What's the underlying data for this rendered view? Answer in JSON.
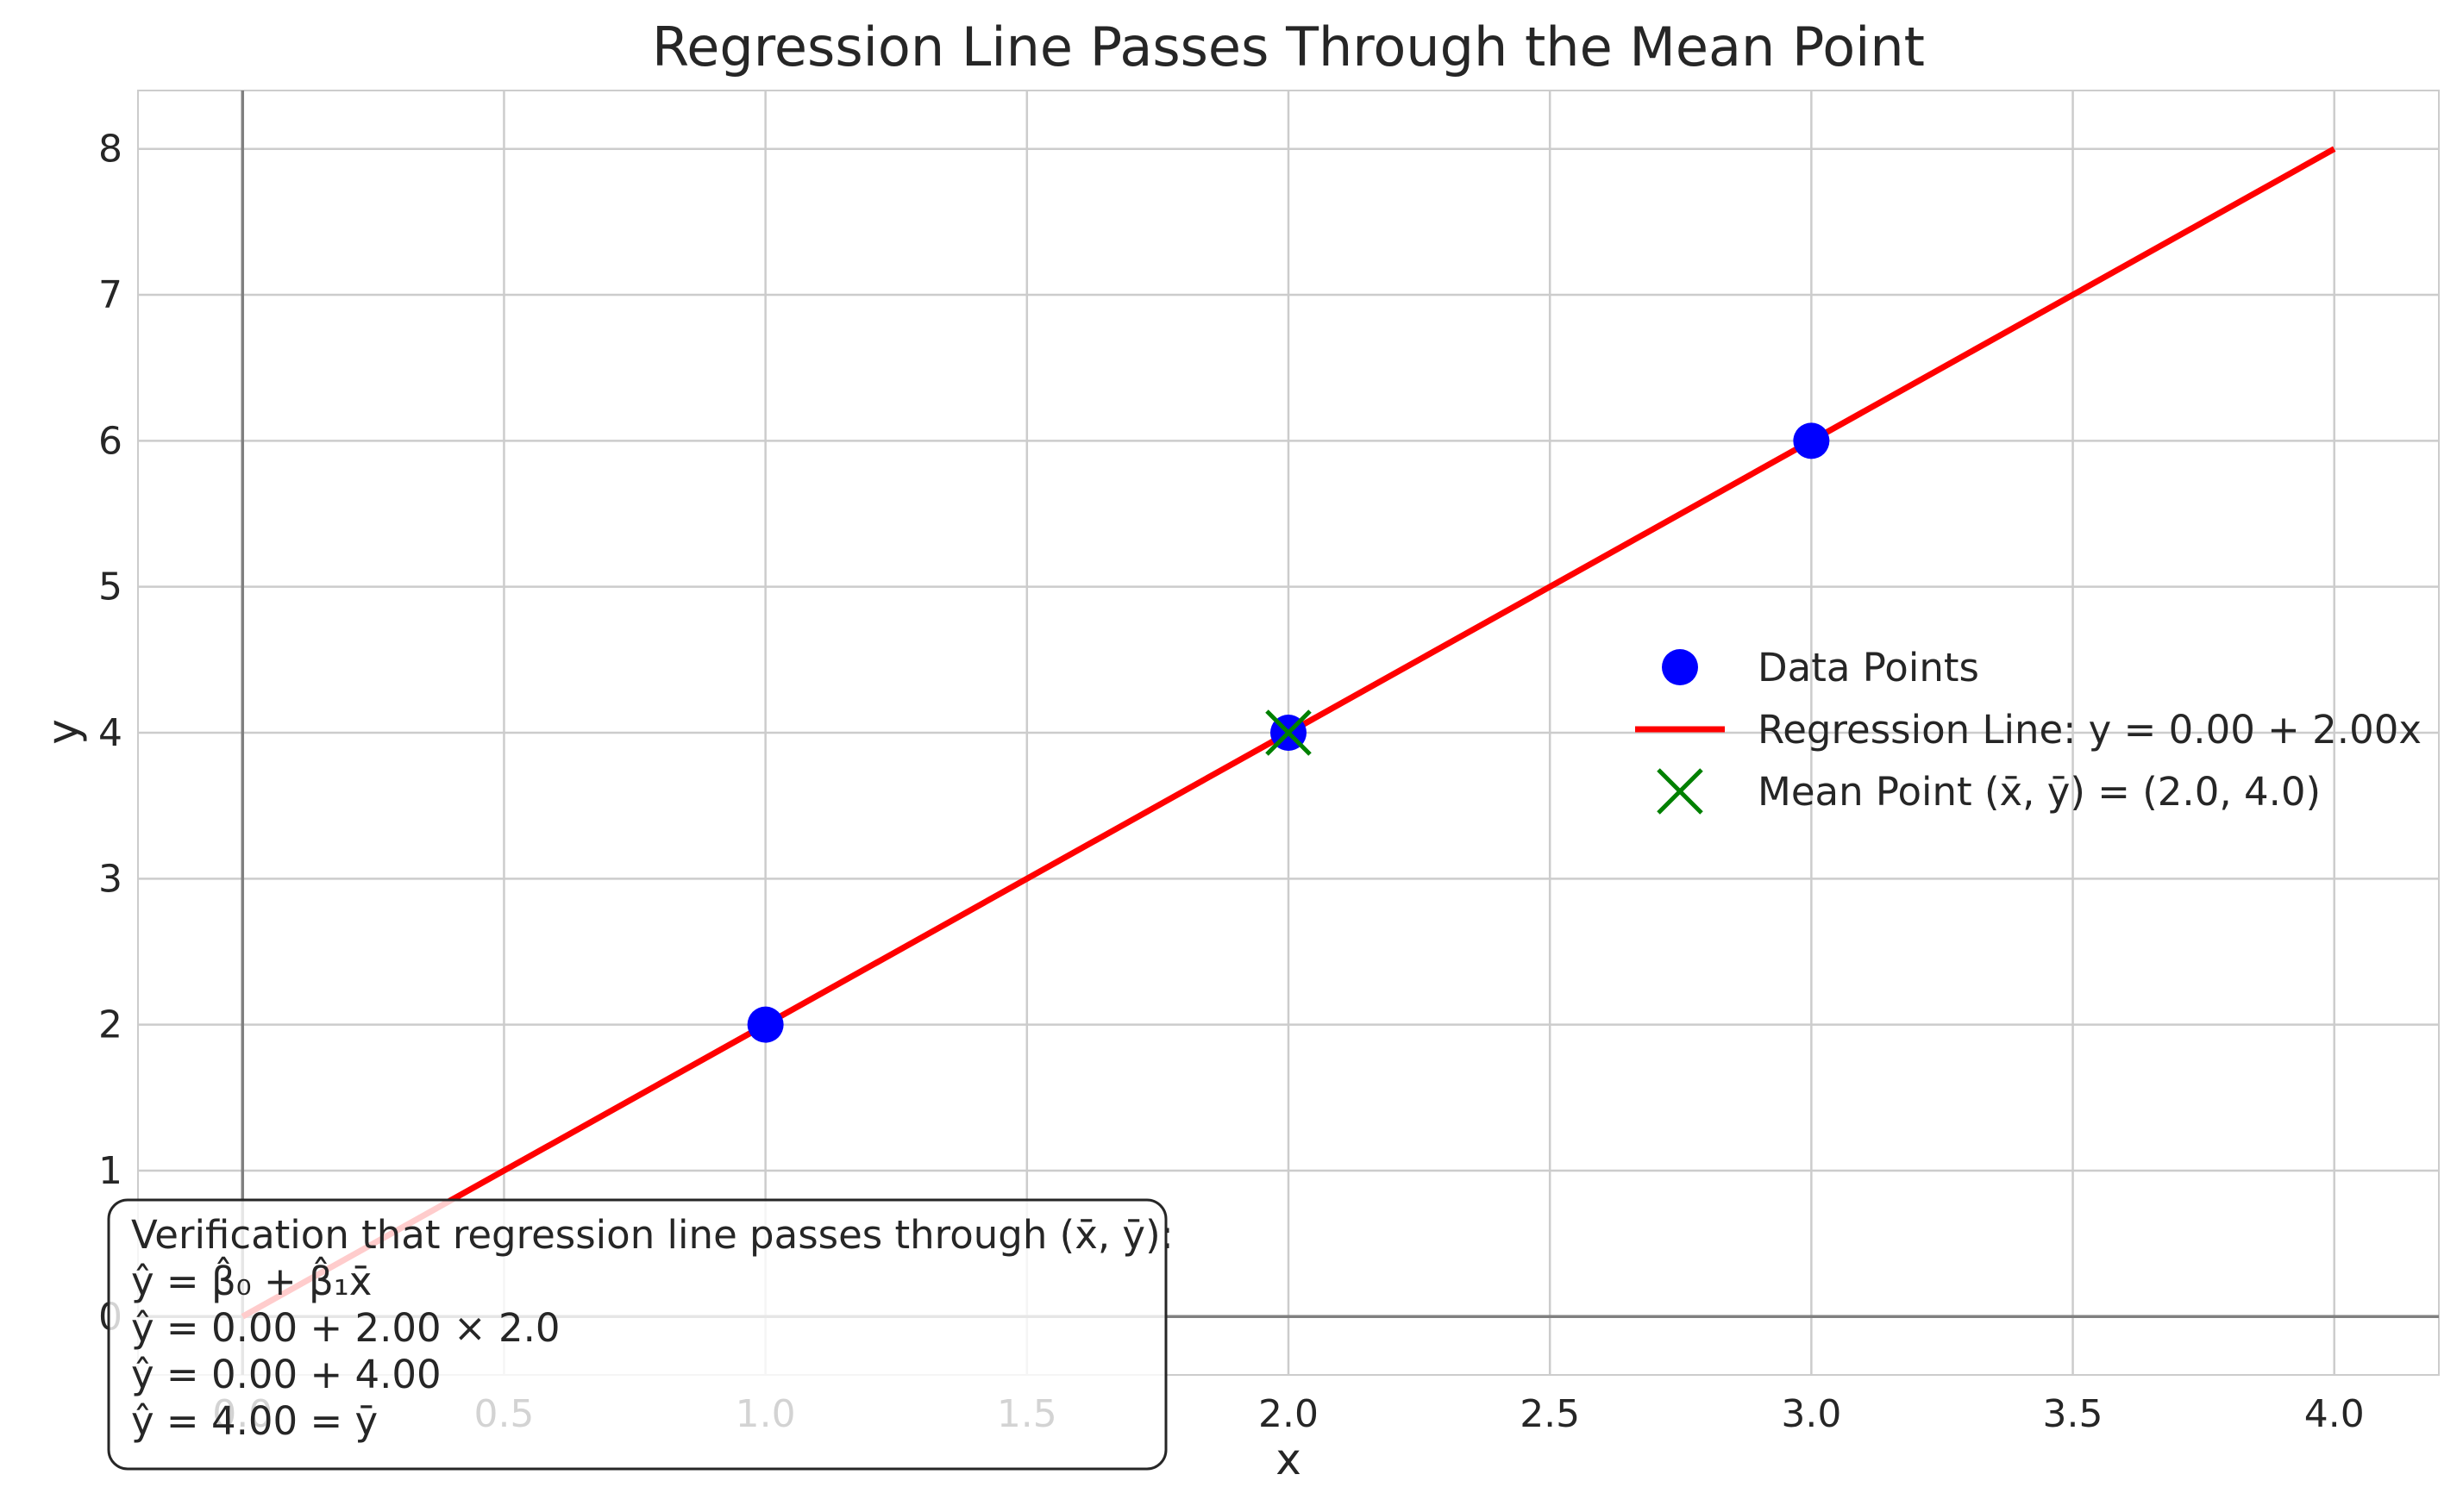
{
  "chart_data": {
    "type": "scatter",
    "title": "Regression Line Passes Through the Mean Point",
    "xlabel": "x",
    "ylabel": "y",
    "xlim": [
      -0.2,
      4.2
    ],
    "ylim": [
      -0.4,
      8.4
    ],
    "xticks": [
      "0.0",
      "0.5",
      "1.0",
      "1.5",
      "2.0",
      "2.5",
      "3.0",
      "3.5",
      "4.0"
    ],
    "yticks": [
      "0",
      "1",
      "2",
      "3",
      "4",
      "5",
      "6",
      "7",
      "8"
    ],
    "grid": true,
    "legend_position": "center-right",
    "series": [
      {
        "name": "Data Points",
        "kind": "scatter",
        "color": "#0000ff",
        "x": [
          1,
          2,
          3
        ],
        "y": [
          2,
          4,
          6
        ]
      },
      {
        "name": "Regression Line: y = 0.00 + 2.00x",
        "kind": "line",
        "color": "#ff0000",
        "x": [
          0,
          4
        ],
        "y": [
          0,
          8
        ]
      },
      {
        "name": "Mean Point (x̄, ȳ) = (2.0, 4.0)",
        "kind": "marker-x",
        "color": "#008000",
        "x": [
          2
        ],
        "y": [
          4
        ]
      }
    ],
    "reference_lines": {
      "x": 0,
      "y": 0,
      "color": "#808080"
    },
    "annotation": {
      "lines": [
        "Verification that regression line passes through (x̄, ȳ):",
        "ŷ = β̂₀ + β̂₁x̄",
        "ŷ = 0.00 + 2.00 × 2.0",
        "ŷ = 0.00 + 4.00",
        "ŷ = 4.00 = ȳ"
      ]
    }
  }
}
